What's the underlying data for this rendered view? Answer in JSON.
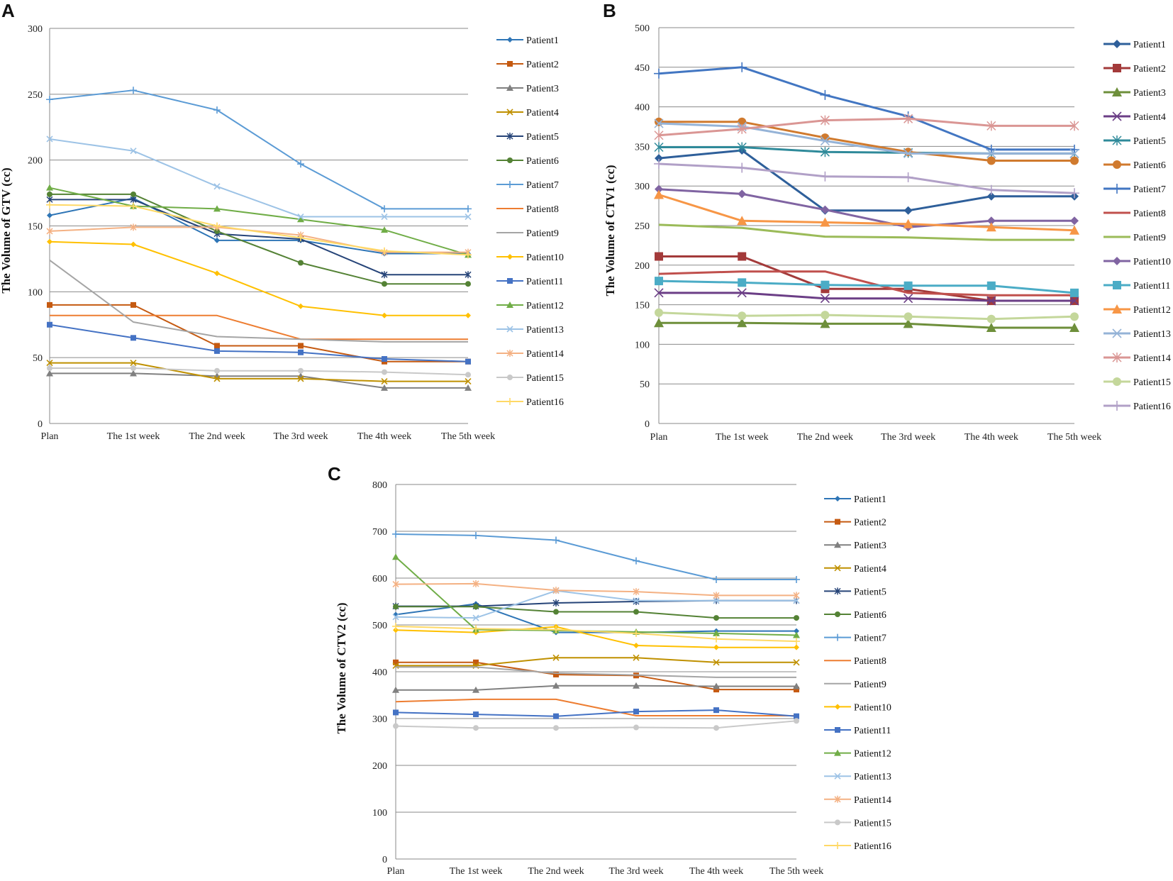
{
  "chart_data": [
    {
      "type": "line",
      "panel": "A",
      "ylabel": "The Volume of GTV (cc)",
      "xlabel": "",
      "categories": [
        "Plan",
        "The 1st week",
        "The 2nd week",
        "The 3rd week",
        "The 4th week",
        "The 5th week"
      ],
      "ylim": [
        0,
        300
      ],
      "yticks": [
        0,
        50,
        100,
        150,
        200,
        250,
        300
      ],
      "grid": true,
      "legend": "right",
      "series": [
        {
          "name": "Patient1",
          "color": "#2E75B6",
          "marker": "diamond",
          "values": [
            158,
            171,
            139,
            139,
            129,
            129
          ]
        },
        {
          "name": "Patient2",
          "color": "#C55A11",
          "marker": "square",
          "values": [
            90,
            90,
            59,
            59,
            47,
            47
          ]
        },
        {
          "name": "Patient3",
          "color": "#808080",
          "marker": "triangle",
          "values": [
            38,
            38,
            36,
            36,
            27,
            27
          ]
        },
        {
          "name": "Patient4",
          "color": "#BF9000",
          "marker": "x",
          "values": [
            46,
            46,
            34,
            34,
            32,
            32
          ]
        },
        {
          "name": "Patient5",
          "color": "#264478",
          "marker": "star",
          "values": [
            170,
            170,
            144,
            140,
            113,
            113
          ]
        },
        {
          "name": "Patient6",
          "color": "#548235",
          "marker": "circle",
          "values": [
            174,
            174,
            146,
            122,
            106,
            106
          ]
        },
        {
          "name": "Patient7",
          "color": "#5B9BD5",
          "marker": "plus",
          "values": [
            246,
            253,
            238,
            197,
            163,
            163
          ]
        },
        {
          "name": "Patient8",
          "color": "#ED7D31",
          "marker": "none",
          "values": [
            82,
            82,
            82,
            64,
            64,
            64
          ]
        },
        {
          "name": "Patient9",
          "color": "#A5A5A5",
          "marker": "none",
          "values": [
            124,
            77,
            66,
            64,
            62,
            62
          ]
        },
        {
          "name": "Patient10",
          "color": "#FFC000",
          "marker": "diamond",
          "values": [
            138,
            136,
            114,
            89,
            82,
            82
          ]
        },
        {
          "name": "Patient11",
          "color": "#4472C4",
          "marker": "square",
          "values": [
            75,
            65,
            55,
            54,
            49,
            47
          ]
        },
        {
          "name": "Patient12",
          "color": "#70AD47",
          "marker": "triangle",
          "values": [
            179,
            165,
            163,
            155,
            147,
            128
          ]
        },
        {
          "name": "Patient13",
          "color": "#9DC3E6",
          "marker": "x",
          "values": [
            216,
            207,
            180,
            157,
            157,
            157
          ]
        },
        {
          "name": "Patient14",
          "color": "#F4B183",
          "marker": "star",
          "values": [
            146,
            149,
            149,
            143,
            130,
            130
          ]
        },
        {
          "name": "Patient15",
          "color": "#C9C9C9",
          "marker": "circle",
          "values": [
            42,
            42,
            40,
            40,
            39,
            37
          ]
        },
        {
          "name": "Patient16",
          "color": "#FFD966",
          "marker": "plus",
          "values": [
            166,
            165,
            150,
            141,
            131,
            128
          ]
        }
      ]
    },
    {
      "type": "line",
      "panel": "B",
      "ylabel": "The Volume of CTV1 (cc)",
      "xlabel": "",
      "categories": [
        "Plan",
        "The 1st week",
        "The 2nd week",
        "The 3rd week",
        "The 4th week",
        "The 5th week"
      ],
      "ylim": [
        0,
        500
      ],
      "yticks": [
        0,
        50,
        100,
        150,
        200,
        250,
        300,
        350,
        400,
        450,
        500
      ],
      "grid": true,
      "legend": "right",
      "series": [
        {
          "name": "Patient1",
          "color": "#2E5F9A",
          "marker": "diamond",
          "values": [
            335,
            345,
            269,
            269,
            287,
            287
          ]
        },
        {
          "name": "Patient2",
          "color": "#A33A3A",
          "marker": "square",
          "values": [
            211,
            211,
            170,
            170,
            155,
            155
          ]
        },
        {
          "name": "Patient3",
          "color": "#6E8F3B",
          "marker": "triangle",
          "values": [
            127,
            127,
            126,
            126,
            121,
            121
          ]
        },
        {
          "name": "Patient4",
          "color": "#6B3E86",
          "marker": "x",
          "values": [
            165,
            165,
            158,
            158,
            155,
            155
          ]
        },
        {
          "name": "Patient5",
          "color": "#2F8A9A",
          "marker": "star",
          "values": [
            349,
            349,
            343,
            342,
            341,
            341
          ]
        },
        {
          "name": "Patient6",
          "color": "#D07A2E",
          "marker": "circle",
          "values": [
            381,
            381,
            361,
            343,
            332,
            332
          ]
        },
        {
          "name": "Patient7",
          "color": "#4276C2",
          "marker": "plus",
          "values": [
            442,
            450,
            415,
            388,
            346,
            346
          ]
        },
        {
          "name": "Patient8",
          "color": "#C0504D",
          "marker": "none",
          "values": [
            189,
            192,
            192,
            165,
            162,
            162
          ]
        },
        {
          "name": "Patient9",
          "color": "#9BBB59",
          "marker": "none",
          "values": [
            251,
            247,
            236,
            235,
            232,
            232
          ]
        },
        {
          "name": "Patient10",
          "color": "#8064A2",
          "marker": "diamond",
          "values": [
            296,
            290,
            270,
            248,
            256,
            256
          ]
        },
        {
          "name": "Patient11",
          "color": "#4BACC6",
          "marker": "square",
          "values": [
            180,
            178,
            175,
            174,
            174,
            165
          ]
        },
        {
          "name": "Patient12",
          "color": "#F79646",
          "marker": "triangle",
          "values": [
            289,
            256,
            254,
            252,
            248,
            244
          ]
        },
        {
          "name": "Patient13",
          "color": "#95B3D7",
          "marker": "x",
          "values": [
            379,
            375,
            357,
            341,
            341,
            341
          ]
        },
        {
          "name": "Patient14",
          "color": "#DA9694",
          "marker": "star",
          "values": [
            364,
            372,
            383,
            385,
            376,
            376
          ]
        },
        {
          "name": "Patient15",
          "color": "#C4D79B",
          "marker": "circle",
          "values": [
            140,
            136,
            137,
            135,
            132,
            135
          ]
        },
        {
          "name": "Patient16",
          "color": "#B1A0C7",
          "marker": "plus",
          "values": [
            328,
            323,
            312,
            311,
            295,
            291
          ]
        }
      ]
    },
    {
      "type": "line",
      "panel": "C",
      "ylabel": "The Volume of CTV2 (cc)",
      "xlabel": "",
      "categories": [
        "Plan",
        "The 1st week",
        "The 2nd week",
        "The 3rd week",
        "The 4th week",
        "The 5th week"
      ],
      "ylim": [
        0,
        800
      ],
      "yticks": [
        0,
        100,
        200,
        300,
        400,
        500,
        600,
        700,
        800
      ],
      "grid": true,
      "legend": "right",
      "series": [
        {
          "name": "Patient1",
          "color": "#2E75B6",
          "marker": "diamond",
          "values": [
            522,
            545,
            484,
            484,
            487,
            487
          ]
        },
        {
          "name": "Patient2",
          "color": "#C55A11",
          "marker": "square",
          "values": [
            420,
            420,
            394,
            392,
            362,
            362
          ]
        },
        {
          "name": "Patient3",
          "color": "#808080",
          "marker": "triangle",
          "values": [
            361,
            361,
            370,
            370,
            369,
            369
          ]
        },
        {
          "name": "Patient4",
          "color": "#BF9000",
          "marker": "x",
          "values": [
            413,
            413,
            430,
            430,
            420,
            420
          ]
        },
        {
          "name": "Patient5",
          "color": "#264478",
          "marker": "star",
          "values": [
            540,
            540,
            547,
            550,
            552,
            552
          ]
        },
        {
          "name": "Patient6",
          "color": "#548235",
          "marker": "circle",
          "values": [
            539,
            539,
            528,
            528,
            515,
            515
          ]
        },
        {
          "name": "Patient7",
          "color": "#5B9BD5",
          "marker": "plus",
          "values": [
            694,
            691,
            681,
            637,
            597,
            597
          ]
        },
        {
          "name": "Patient8",
          "color": "#ED7D31",
          "marker": "none",
          "values": [
            336,
            341,
            341,
            306,
            306,
            306
          ]
        },
        {
          "name": "Patient9",
          "color": "#A5A5A5",
          "marker": "none",
          "values": [
            410,
            410,
            397,
            393,
            388,
            388
          ]
        },
        {
          "name": "Patient10",
          "color": "#FFC000",
          "marker": "diamond",
          "values": [
            489,
            484,
            496,
            456,
            452,
            452
          ]
        },
        {
          "name": "Patient11",
          "color": "#4472C4",
          "marker": "square",
          "values": [
            313,
            309,
            305,
            315,
            318,
            305
          ]
        },
        {
          "name": "Patient12",
          "color": "#70AD47",
          "marker": "triangle",
          "values": [
            645,
            490,
            488,
            485,
            482,
            478
          ]
        },
        {
          "name": "Patient13",
          "color": "#9DC3E6",
          "marker": "x",
          "values": [
            517,
            515,
            573,
            552,
            552,
            552
          ]
        },
        {
          "name": "Patient14",
          "color": "#F4B183",
          "marker": "star",
          "values": [
            587,
            588,
            574,
            571,
            563,
            563
          ]
        },
        {
          "name": "Patient15",
          "color": "#C9C9C9",
          "marker": "circle",
          "values": [
            284,
            280,
            280,
            281,
            280,
            295
          ]
        },
        {
          "name": "Patient16",
          "color": "#FFD966",
          "marker": "plus",
          "values": [
            497,
            492,
            490,
            482,
            470,
            465
          ]
        }
      ]
    }
  ]
}
